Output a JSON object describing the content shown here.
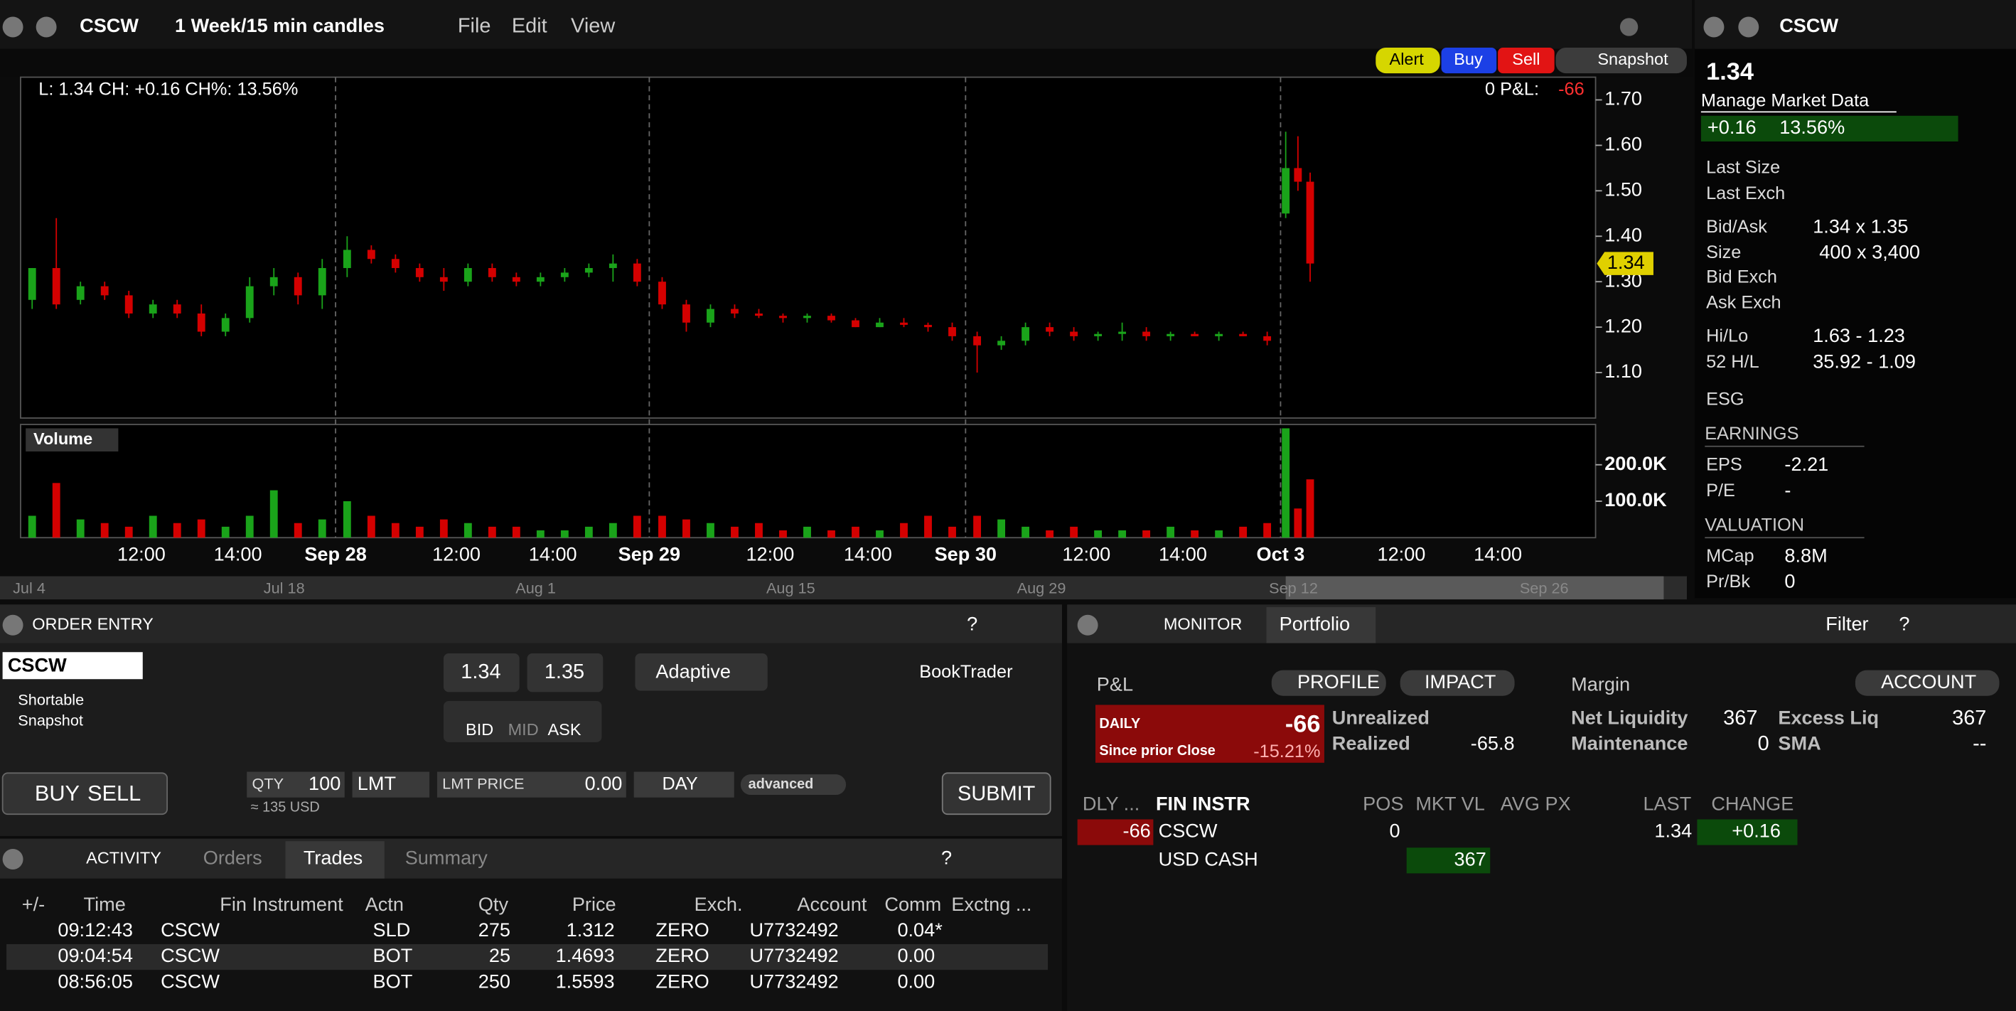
{
  "chart_window": {
    "symbol": "CSCW",
    "period": "1 Week/15 min candles",
    "menu": [
      "File",
      "Edit",
      "View"
    ],
    "buttons": [
      "Alert",
      "Buy",
      "Sell",
      "Snapshot"
    ],
    "legend": "L: 1.34 CH: +0.16 CH%: 13.56%",
    "pnl_label": "0 P&L:",
    "pnl": "-66",
    "last_tag": "1.34",
    "volume_label": "Volume",
    "time_labels": [
      "12:00",
      "14:00",
      "Sep 28",
      "12:00",
      "14:00",
      "Sep 29",
      "12:00",
      "14:00",
      "Sep 30",
      "12:00",
      "14:00",
      "Oct 3",
      "12:00",
      "14:00"
    ],
    "navigator_labels": [
      "Jul 4",
      "Jul 18",
      "Aug 1",
      "Aug 15",
      "Aug 29",
      "Sep 12",
      "Sep 26"
    ]
  },
  "chart_data": {
    "type": "candlestick",
    "up_color": "#1aa31a",
    "down_color": "#d40000",
    "open": [
      1.26,
      1.33,
      1.26,
      1.29,
      1.27,
      1.23,
      1.25,
      1.23,
      1.19,
      1.22,
      1.29,
      1.31,
      1.27,
      1.33,
      1.37,
      1.35,
      1.33,
      1.31,
      1.3,
      1.33,
      1.31,
      1.3,
      1.31,
      1.32,
      1.33,
      1.34,
      1.3,
      1.25,
      1.21,
      1.24,
      1.23,
      1.225,
      1.22,
      1.225,
      1.215,
      1.2,
      1.21,
      1.205,
      1.2,
      1.18,
      1.16,
      1.17,
      1.2,
      1.19,
      1.18,
      1.185,
      1.19,
      1.18,
      1.185,
      1.18,
      1.185,
      1.18,
      1.45,
      1.55,
      1.52
    ],
    "high": [
      1.33,
      1.44,
      1.3,
      1.3,
      1.28,
      1.26,
      1.26,
      1.25,
      1.23,
      1.31,
      1.33,
      1.32,
      1.35,
      1.4,
      1.38,
      1.36,
      1.34,
      1.33,
      1.34,
      1.34,
      1.32,
      1.32,
      1.33,
      1.34,
      1.36,
      1.35,
      1.31,
      1.26,
      1.25,
      1.25,
      1.24,
      1.23,
      1.23,
      1.23,
      1.22,
      1.22,
      1.22,
      1.21,
      1.21,
      1.19,
      1.18,
      1.21,
      1.21,
      1.2,
      1.19,
      1.21,
      1.2,
      1.19,
      1.19,
      1.19,
      1.19,
      1.19,
      1.63,
      1.62,
      1.54
    ],
    "low": [
      1.24,
      1.24,
      1.25,
      1.26,
      1.22,
      1.22,
      1.22,
      1.18,
      1.18,
      1.21,
      1.27,
      1.25,
      1.24,
      1.31,
      1.34,
      1.32,
      1.3,
      1.28,
      1.29,
      1.3,
      1.29,
      1.29,
      1.3,
      1.31,
      1.3,
      1.29,
      1.24,
      1.19,
      1.2,
      1.22,
      1.22,
      1.21,
      1.21,
      1.21,
      1.2,
      1.2,
      1.2,
      1.19,
      1.17,
      1.1,
      1.15,
      1.16,
      1.18,
      1.17,
      1.17,
      1.17,
      1.17,
      1.17,
      1.18,
      1.17,
      1.18,
      1.16,
      1.44,
      1.5,
      1.3
    ],
    "close": [
      1.33,
      1.25,
      1.29,
      1.27,
      1.23,
      1.25,
      1.23,
      1.19,
      1.22,
      1.29,
      1.31,
      1.27,
      1.33,
      1.37,
      1.35,
      1.33,
      1.31,
      1.3,
      1.33,
      1.31,
      1.3,
      1.31,
      1.32,
      1.33,
      1.34,
      1.3,
      1.25,
      1.21,
      1.24,
      1.23,
      1.225,
      1.22,
      1.225,
      1.215,
      1.2,
      1.21,
      1.205,
      1.2,
      1.18,
      1.16,
      1.17,
      1.2,
      1.19,
      1.18,
      1.185,
      1.19,
      1.18,
      1.185,
      1.18,
      1.185,
      1.18,
      1.17,
      1.55,
      1.52,
      1.34
    ],
    "volume": [
      60000,
      150000,
      50000,
      40000,
      30000,
      60000,
      40000,
      50000,
      30000,
      60000,
      130000,
      40000,
      50000,
      100000,
      60000,
      40000,
      30000,
      50000,
      40000,
      30000,
      30000,
      20000,
      20000,
      30000,
      40000,
      60000,
      60000,
      50000,
      40000,
      30000,
      40000,
      20000,
      30000,
      20000,
      30000,
      20000,
      40000,
      60000,
      30000,
      60000,
      50000,
      30000,
      20000,
      30000,
      20000,
      20000,
      20000,
      30000,
      20000,
      20000,
      30000,
      40000,
      300000,
      80000,
      160000
    ],
    "ylim": [
      1.0,
      1.75
    ],
    "yticks": [
      {
        "value": 1.1,
        "label": "1.10"
      },
      {
        "value": 1.2,
        "label": "1.20"
      },
      {
        "value": 1.3,
        "label": "1.30"
      },
      {
        "value": 1.4,
        "label": "1.40"
      },
      {
        "value": 1.5,
        "label": "1.50"
      },
      {
        "value": 1.6,
        "label": "1.60"
      },
      {
        "value": 1.7,
        "label": "1.70"
      }
    ],
    "y2lim": [
      0,
      300000
    ],
    "y2ticks": [
      {
        "value": 100000,
        "label": "100.0K"
      },
      {
        "value": 200000,
        "label": "200.0K"
      }
    ]
  },
  "quote_panel": {
    "symbol": "CSCW",
    "last": "1.34",
    "manage": "Manage Market Data",
    "change": "+0.16",
    "change_pct": "13.56%",
    "rows": [
      {
        "label": "Last Size"
      },
      {
        "label": "Last Exch"
      },
      {
        "label": "Bid/Ask",
        "value": "1.34 x 1.35"
      },
      {
        "label": "Size",
        "value": "400 x 3,400"
      },
      {
        "label": "Bid Exch"
      },
      {
        "label": "Ask Exch"
      },
      {
        "label": "Hi/Lo",
        "value": "1.63 - 1.23"
      },
      {
        "label": "52 H/L",
        "value": "35.92 - 1.09"
      },
      {
        "label": "ESG"
      }
    ],
    "earnings": "EARNINGS",
    "earnings_rows": [
      {
        "label": "EPS",
        "value": "-2.21"
      },
      {
        "label": "P/E",
        "value": "-"
      }
    ],
    "valuation": "VALUATION",
    "valuation_rows": [
      {
        "label": "MCap",
        "value": "8.8M"
      },
      {
        "label": "Pr/Bk",
        "value": "0"
      }
    ]
  },
  "order_entry": {
    "title": "ORDER ENTRY",
    "help": "?",
    "symbol": "CSCW",
    "shortable": "Shortable",
    "snapshot": "Snapshot",
    "bid": "1.34",
    "ask": "1.35",
    "bid_label": "BID",
    "mid_label": "MID",
    "ask_label": "ASK",
    "algo": "Adaptive",
    "booktrader": "BookTrader",
    "buy": "BUY",
    "sell": "SELL",
    "qty_label": "QTY",
    "qty": "100",
    "order_type": "LMT",
    "lmt_label": "LMT PRICE",
    "lmt": "0.00",
    "tif": "DAY",
    "advanced": "advanced",
    "approx": "≈ 135 USD",
    "submit": "SUBMIT"
  },
  "activity": {
    "title": "ACTIVITY",
    "help": "?",
    "tabs": [
      "Orders",
      "Trades",
      "Summary"
    ],
    "columns": [
      "+/-",
      "Time",
      "Fin Instrument",
      "Actn",
      "Qty",
      "Price",
      "Exch.",
      "Account",
      "Comm",
      "Exctng ..."
    ],
    "rows": [
      [
        "09:12:43",
        "CSCW",
        "SLD",
        "275",
        "1.312",
        "ZERO",
        "U7732492",
        "0.04*"
      ],
      [
        "09:04:54",
        "CSCW",
        "BOT",
        "25",
        "1.4693",
        "ZERO",
        "U7732492",
        "0.00"
      ],
      [
        "08:56:05",
        "CSCW",
        "BOT",
        "250",
        "1.5593",
        "ZERO",
        "U7732492",
        "0.00"
      ]
    ]
  },
  "monitor": {
    "title": "MONITOR",
    "tab": "Portfolio",
    "filter": "Filter",
    "help": "?",
    "pnl_title": "P&L",
    "profile": "PROFILE",
    "impact": "IMPACT",
    "daily": "DAILY",
    "daily_value": "-66",
    "since": "Since prior Close",
    "daily_pct": "-15.21%",
    "unrealized": "Unrealized",
    "realized": "Realized",
    "realized_value": "-65.8",
    "margin": "Margin",
    "account": "ACCOUNT",
    "net_liq_label": "Net Liquidity",
    "net_liq": "367",
    "excess_label": "Excess Liq",
    "excess": "367",
    "maintenance_label": "Maintenance",
    "maintenance": "0",
    "sma_label": "SMA",
    "sma": "--",
    "columns": [
      "DLY ...",
      "FIN INSTR",
      "POS",
      "MKT VL",
      "AVG PX",
      "LAST",
      "CHANGE"
    ],
    "rows": [
      {
        "dly": "-66",
        "instr": "CSCW",
        "pos": "0",
        "last": "1.34",
        "change": "+0.16"
      },
      {
        "instr": "USD CASH",
        "mkt_vl": "367"
      }
    ]
  }
}
